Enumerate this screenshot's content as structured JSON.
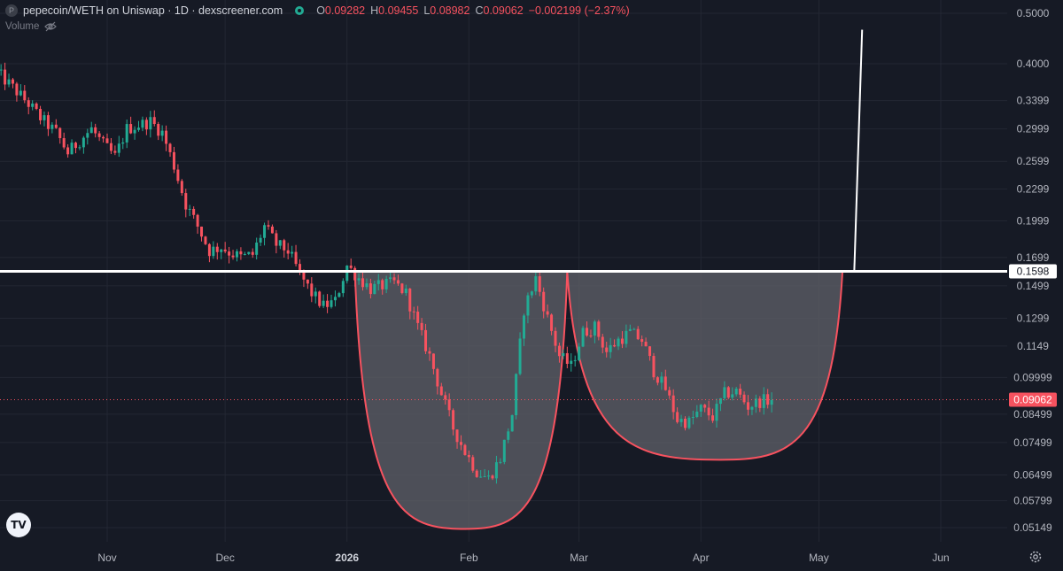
{
  "legend": {
    "symbol_icon": "P",
    "title": "pepecoin/WETH on Uniswap · 1D · dexscreener.com",
    "open_label": "O",
    "open": "0.09282",
    "high_label": "H",
    "high": "0.09455",
    "low_label": "L",
    "low": "0.08982",
    "close_label": "C",
    "close": "0.09062",
    "change": "−0.002199 (−2.37%)"
  },
  "volume_label": "Volume",
  "icons": [
    "symbol-icon",
    "eye-dot-icon",
    "eye-hidden-icon",
    "tradingview-logo-icon",
    "gear-icon"
  ],
  "colors": {
    "up": "#22ab94",
    "down": "#f7525f",
    "background": "#161a25",
    "cup_fill": "#5d5f66",
    "cup_stroke": "#f7525f",
    "resistance": "#ffffff"
  },
  "chart_data": {
    "type": "candlestick",
    "x_labels": [
      {
        "text": "Nov",
        "date": "2025-11-01"
      },
      {
        "text": "Dec",
        "date": "2025-12-01"
      },
      {
        "text": "2026",
        "date": "2026-01-01",
        "bold": true
      },
      {
        "text": "Feb",
        "date": "2026-02-01"
      },
      {
        "text": "Mar",
        "date": "2026-03-01"
      },
      {
        "text": "Apr",
        "date": "2026-04-01"
      },
      {
        "text": "May",
        "date": "2026-05-01"
      },
      {
        "text": "Jun",
        "date": "2026-06-01"
      }
    ],
    "y_scale": "log",
    "y_ticks": [
      "0.5000",
      "0.4000",
      "0.3399",
      "0.2999",
      "0.2599",
      "0.2299",
      "0.1999",
      "0.1699",
      "0.1499",
      "0.1299",
      "0.1149",
      "0.09999",
      "0.08499",
      "0.07499",
      "0.06499",
      "0.05799",
      "0.05149"
    ],
    "y_range": [
      0.0485,
      0.52
    ],
    "current_price": "0.09062",
    "resistance_level": "0.1598",
    "closes": [
      [
        "2025-10-04",
        0.385
      ],
      [
        "2025-10-08",
        0.36
      ],
      [
        "2025-10-12",
        0.335
      ],
      [
        "2025-10-15",
        0.315
      ],
      [
        "2025-10-19",
        0.295
      ],
      [
        "2025-10-22",
        0.27
      ],
      [
        "2025-10-25",
        0.285
      ],
      [
        "2025-10-28",
        0.3
      ],
      [
        "2025-10-31",
        0.28
      ],
      [
        "2025-11-03",
        0.265
      ],
      [
        "2025-11-06",
        0.3
      ],
      [
        "2025-11-09",
        0.305
      ],
      [
        "2025-11-12",
        0.31
      ],
      [
        "2025-11-15",
        0.295
      ],
      [
        "2025-11-18",
        0.255
      ],
      [
        "2025-11-21",
        0.215
      ],
      [
        "2025-11-24",
        0.195
      ],
      [
        "2025-11-27",
        0.175
      ],
      [
        "2025-11-30",
        0.178
      ],
      [
        "2025-12-02",
        0.174
      ],
      [
        "2025-12-05",
        0.17
      ],
      [
        "2025-12-08",
        0.172
      ],
      [
        "2025-12-11",
        0.195
      ],
      [
        "2025-12-14",
        0.18
      ],
      [
        "2025-12-17",
        0.175
      ],
      [
        "2025-12-20",
        0.158
      ],
      [
        "2025-12-23",
        0.145
      ],
      [
        "2025-12-26",
        0.137
      ],
      [
        "2025-12-29",
        0.14
      ],
      [
        "2026-01-01",
        0.164
      ],
      [
        "2026-01-04",
        0.155
      ],
      [
        "2026-01-07",
        0.148
      ],
      [
        "2026-01-10",
        0.15
      ],
      [
        "2026-01-13",
        0.152
      ],
      [
        "2026-01-16",
        0.145
      ],
      [
        "2026-01-19",
        0.125
      ],
      [
        "2026-01-22",
        0.11
      ],
      [
        "2026-01-25",
        0.093
      ],
      [
        "2026-01-28",
        0.08
      ],
      [
        "2026-01-31",
        0.072
      ],
      [
        "2026-02-03",
        0.066
      ],
      [
        "2026-02-06",
        0.064
      ],
      [
        "2026-02-09",
        0.07
      ],
      [
        "2026-02-12",
        0.085
      ],
      [
        "2026-02-15",
        0.135
      ],
      [
        "2026-02-18",
        0.155
      ],
      [
        "2026-02-21",
        0.13
      ],
      [
        "2026-02-24",
        0.11
      ],
      [
        "2026-02-27",
        0.105
      ],
      [
        "2026-03-02",
        0.122
      ],
      [
        "2026-03-05",
        0.125
      ],
      [
        "2026-03-08",
        0.112
      ],
      [
        "2026-03-11",
        0.118
      ],
      [
        "2026-03-14",
        0.122
      ],
      [
        "2026-03-17",
        0.118
      ],
      [
        "2026-03-20",
        0.103
      ],
      [
        "2026-03-23",
        0.095
      ],
      [
        "2026-03-26",
        0.083
      ],
      [
        "2026-03-29",
        0.082
      ],
      [
        "2026-04-01",
        0.087
      ],
      [
        "2026-04-04",
        0.084
      ],
      [
        "2026-04-07",
        0.093
      ],
      [
        "2026-04-10",
        0.094
      ],
      [
        "2026-04-13",
        0.088
      ],
      [
        "2026-04-16",
        0.09
      ],
      [
        "2026-04-19",
        0.09062
      ]
    ],
    "cup_and_handle_pattern": {
      "left_cup": {
        "rim_dates": [
          "2026-01-03",
          "2026-02-26"
        ],
        "bottom": [
          "2026-01-31",
          0.0512
        ]
      },
      "right_cup": {
        "rim_dates": [
          "2026-02-26",
          "2026-05-07"
        ],
        "bottom": [
          "2026-04-06",
          0.0695
        ]
      },
      "breakout_target_line": {
        "from": [
          "2026-05-10",
          0.1598
        ],
        "to": [
          "2026-05-12",
          0.465
        ]
      }
    }
  }
}
